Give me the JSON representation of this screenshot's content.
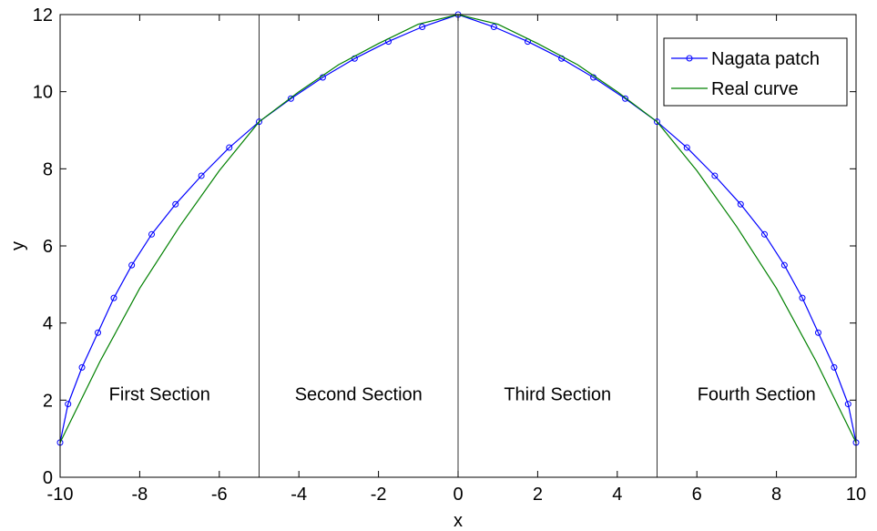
{
  "chart_data": {
    "type": "line",
    "xlabel": "x",
    "ylabel": "y",
    "xlim": [
      -10,
      10
    ],
    "ylim": [
      0,
      12
    ],
    "x_ticks": [
      "-10",
      "-8",
      "-6",
      "-4",
      "-2",
      "0",
      "2",
      "4",
      "6",
      "8",
      "10"
    ],
    "y_ticks": [
      "0",
      "2",
      "4",
      "6",
      "8",
      "10",
      "12"
    ],
    "grid": false,
    "legend_position": "top-right",
    "section_dividers": [
      -5,
      0,
      5
    ],
    "annotations": [
      {
        "text": "First Section",
        "x": -7.5,
        "y": 2
      },
      {
        "text": "Second Section",
        "x": -2.5,
        "y": 2
      },
      {
        "text": "Third Section",
        "x": 2.5,
        "y": 2
      },
      {
        "text": "Fourth Section",
        "x": 7.5,
        "y": 2
      }
    ],
    "series": [
      {
        "name": "Nagata patch",
        "color": "#0000ff",
        "marker": "circle",
        "points": [
          [
            -10,
            0.9
          ],
          [
            -9.8,
            1.9
          ],
          [
            -9.45,
            2.85
          ],
          [
            -9.05,
            3.75
          ],
          [
            -8.65,
            4.65
          ],
          [
            -8.2,
            5.5
          ],
          [
            -7.7,
            6.3
          ],
          [
            -7.1,
            7.08
          ],
          [
            -6.45,
            7.82
          ],
          [
            -5.75,
            8.55
          ],
          [
            -5,
            9.22
          ],
          [
            -4.2,
            9.82
          ],
          [
            -3.4,
            10.37
          ],
          [
            -2.6,
            10.86
          ],
          [
            -1.75,
            11.3
          ],
          [
            -0.9,
            11.68
          ],
          [
            0,
            12
          ],
          [
            0.9,
            11.68
          ],
          [
            1.75,
            11.3
          ],
          [
            2.6,
            10.86
          ],
          [
            3.4,
            10.37
          ],
          [
            4.2,
            9.82
          ],
          [
            5,
            9.22
          ],
          [
            5.75,
            8.55
          ],
          [
            6.45,
            7.82
          ],
          [
            7.1,
            7.08
          ],
          [
            7.7,
            6.3
          ],
          [
            8.2,
            5.5
          ],
          [
            8.65,
            4.65
          ],
          [
            9.05,
            3.75
          ],
          [
            9.45,
            2.85
          ],
          [
            9.8,
            1.9
          ],
          [
            10,
            0.9
          ]
        ]
      },
      {
        "name": "Real curve",
        "color": "#008000",
        "marker": "none",
        "points": [
          [
            -10,
            0.9
          ],
          [
            -9,
            3.0
          ],
          [
            -8,
            4.9
          ],
          [
            -7,
            6.5
          ],
          [
            -6,
            7.95
          ],
          [
            -5,
            9.22
          ],
          [
            -4,
            10.0
          ],
          [
            -3,
            10.7
          ],
          [
            -2,
            11.25
          ],
          [
            -1,
            11.75
          ],
          [
            0,
            12
          ],
          [
            1,
            11.75
          ],
          [
            2,
            11.25
          ],
          [
            3,
            10.7
          ],
          [
            4,
            10.0
          ],
          [
            5,
            9.22
          ],
          [
            6,
            7.95
          ],
          [
            7,
            6.5
          ],
          [
            8,
            4.9
          ],
          [
            9,
            3.0
          ],
          [
            10,
            0.9
          ]
        ]
      }
    ]
  }
}
